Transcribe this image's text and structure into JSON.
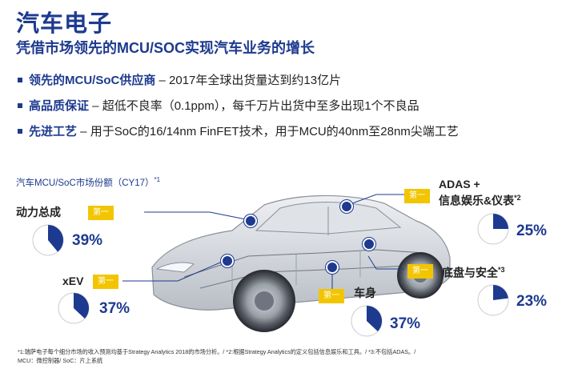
{
  "header": {
    "title": "汽车电子",
    "subtitle": "凭借市场领先的MCU/SOC实现汽车业务的增长"
  },
  "bullets": [
    {
      "bold": "领先的MCU/SoC供应商",
      "rest": " – 2017年全球出货量达到约13亿片"
    },
    {
      "bold": "高品质保证",
      "rest": " – 超低不良率（0.1ppm），每千万片出货中至多出现1个不良品"
    },
    {
      "bold": "先进工艺",
      "rest": " – 用于SoC的16/14nm FinFET技术，用于MCU的40nm至28nm尖端工艺"
    }
  ],
  "chart_title": {
    "text": "汽车MCU/SoC市场份额（CY17）",
    "note": "*1"
  },
  "rank_label": "第一",
  "segments": {
    "powertrain": {
      "label": "动力总成",
      "pct": "39%",
      "value": 39
    },
    "xev": {
      "label": "xEV",
      "pct": "37%",
      "value": 37
    },
    "adas": {
      "label_line1": "ADAS +",
      "label_line2": "信息娱乐&仪表",
      "note": "*2",
      "pct": "25%",
      "value": 25
    },
    "chassis": {
      "label": "底盘与安全",
      "note": "*3",
      "pct": "23%",
      "value": 23
    },
    "body": {
      "label": "车身",
      "pct": "37%",
      "value": 37
    }
  },
  "footer": {
    "line1": "*1:瑞萨电子每个细分市场的收入预测均基于Strategy Analytics 2018的市场分析。/ *2:根据Strategy Analytics的定义包括信息娱乐和工具。/ *3:不包括ADAS。/",
    "line2": "MCU：微控制器/ SoC：片上系统"
  },
  "colors": {
    "brand": "#1d3a8f",
    "tag": "#f2c500",
    "pie_bg": "#ffffff",
    "pie_border": "#c8cbd2"
  }
}
